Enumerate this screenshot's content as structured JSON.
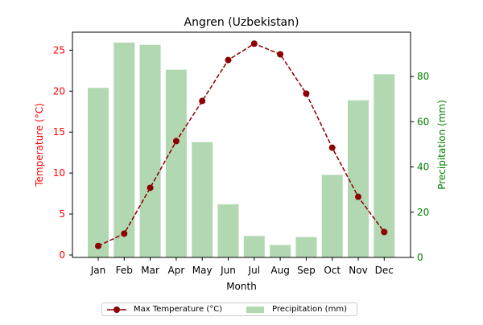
{
  "chart_data": {
    "type": "bar+line",
    "title": "Angren (Uzbekistan)",
    "xlabel": "Month",
    "categories": [
      "Jan",
      "Feb",
      "Mar",
      "Apr",
      "May",
      "Jun",
      "Jul",
      "Aug",
      "Sep",
      "Oct",
      "Nov",
      "Dec"
    ],
    "series": [
      {
        "name": "Max Temperature (°C)",
        "type": "line",
        "axis": "left",
        "color": "#8b0000",
        "line_style": "dashed",
        "marker": "circle",
        "values": [
          1.1,
          2.6,
          8.2,
          13.9,
          18.8,
          23.8,
          25.8,
          24.5,
          19.7,
          13.1,
          7.1,
          2.8
        ]
      },
      {
        "name": "Precipitation (mm)",
        "type": "bar",
        "axis": "right",
        "color": "#b2d8b2",
        "values": [
          75,
          95,
          94,
          83,
          51,
          23.5,
          9.5,
          5.5,
          9,
          36.5,
          69.5,
          81
        ]
      }
    ],
    "y_left": {
      "label": "Temperature (°C)",
      "lim": [
        -0.3,
        27.2
      ],
      "ticks": [
        0,
        5,
        10,
        15,
        20,
        25
      ],
      "color": "#ff0000"
    },
    "y_right": {
      "label": "Precipitation (mm)",
      "lim": [
        0,
        99.6
      ],
      "ticks": [
        0,
        20,
        40,
        60,
        80
      ],
      "color": "#008000"
    },
    "grid": false,
    "legend_position": "bottom-center"
  }
}
